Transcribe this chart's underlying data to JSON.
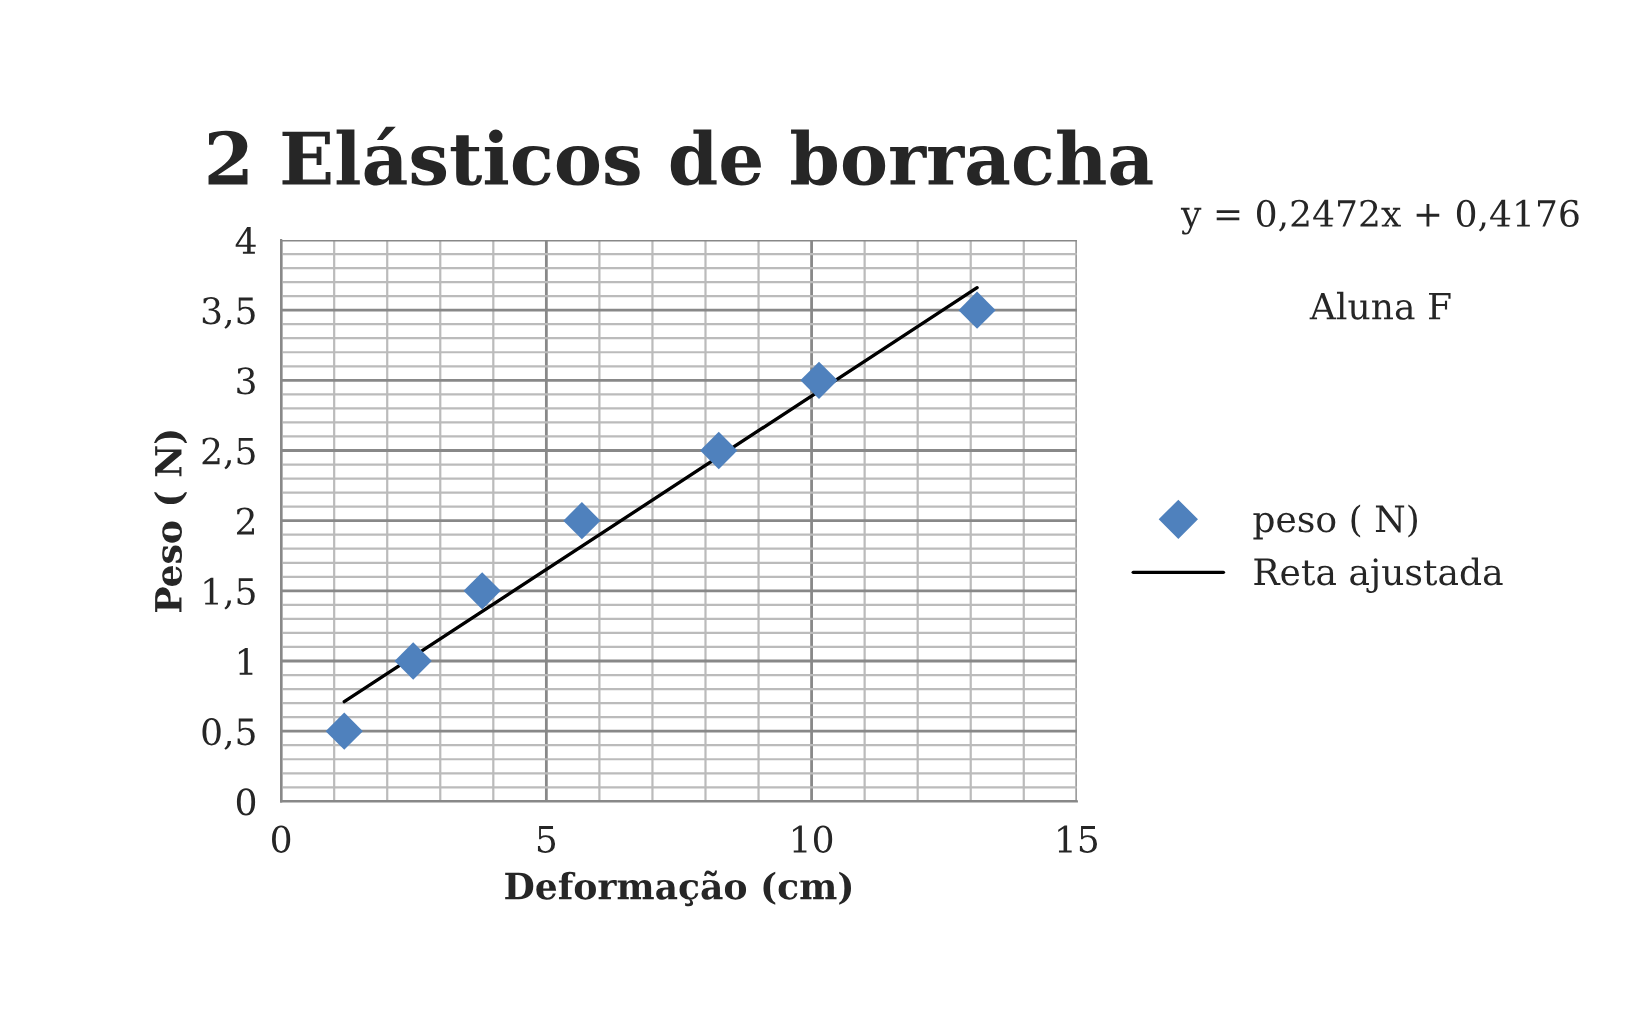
{
  "chart_data": {
    "type": "scatter",
    "title": "2 Elásticos de borracha",
    "xlabel": "Deformação (cm)",
    "ylabel": "Peso ( N)",
    "annotations": [
      "y = 0,2472x + 0,4176",
      "Aluna F"
    ],
    "series": [
      {
        "name": "peso ( N)",
        "color": "#4f81bd",
        "marker": "diamond",
        "x": [
          1.19,
          2.49,
          3.79,
          5.67,
          8.25,
          10.14,
          13.12
        ],
        "values": [
          0.5,
          1,
          1.5,
          2,
          2.5,
          3,
          3.5
        ]
      },
      {
        "name": "Reta ajustada",
        "type": "line",
        "color": "#000000",
        "line_style": "solid",
        "x": [
          1.19,
          13.12
        ],
        "values": [
          0.71,
          3.66
        ]
      }
    ],
    "xlim": [
      0,
      15
    ],
    "ylim": [
      0,
      4
    ],
    "xticks": [
      0,
      5,
      10,
      15
    ],
    "yticks": [
      0,
      {
        "value": 0.5,
        "label": "0,5"
      },
      1,
      {
        "value": 1.5,
        "label": "1,5"
      },
      2,
      {
        "value": 2.5,
        "label": "2,5"
      },
      3,
      {
        "value": 3.5,
        "label": "3,5"
      },
      4
    ],
    "grid": true,
    "legend": "right"
  }
}
